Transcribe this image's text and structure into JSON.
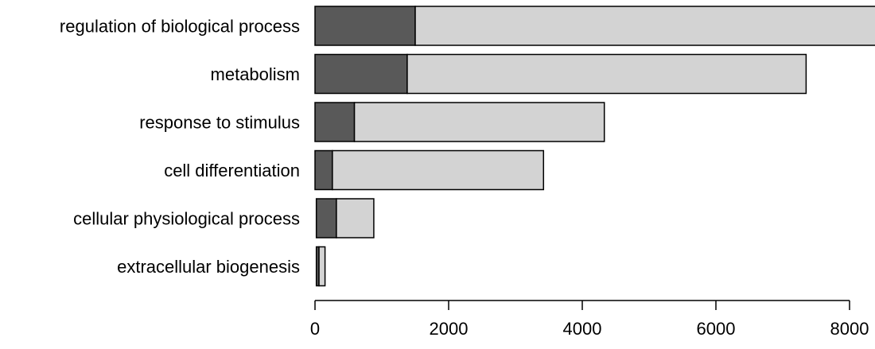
{
  "chart_data": {
    "type": "bar",
    "orientation": "horizontal",
    "stacked": true,
    "categories": [
      "regulation of biological process",
      "metabolism",
      "response to stimulus",
      "cell differentiation",
      "cellular physiological process",
      "extracellular biogenesis"
    ],
    "series": [
      {
        "values": [
          1500,
          1380,
          590,
          260,
          300,
          40
        ],
        "color": "#595959"
      },
      {
        "values": [
          6950,
          5970,
          3740,
          3160,
          560,
          90
        ],
        "color": "#d3d3d3"
      }
    ],
    "xlim": [
      0,
      8400
    ],
    "xticks": [
      0,
      2000,
      4000,
      6000,
      8000
    ],
    "xtick_labels": [
      "0",
      "2000",
      "4000",
      "6000",
      "8000"
    ],
    "bar_starts": [
      0,
      0,
      0,
      0,
      20,
      20
    ],
    "title": "",
    "xlabel": "",
    "ylabel": "",
    "grid": false,
    "legend": false
  }
}
